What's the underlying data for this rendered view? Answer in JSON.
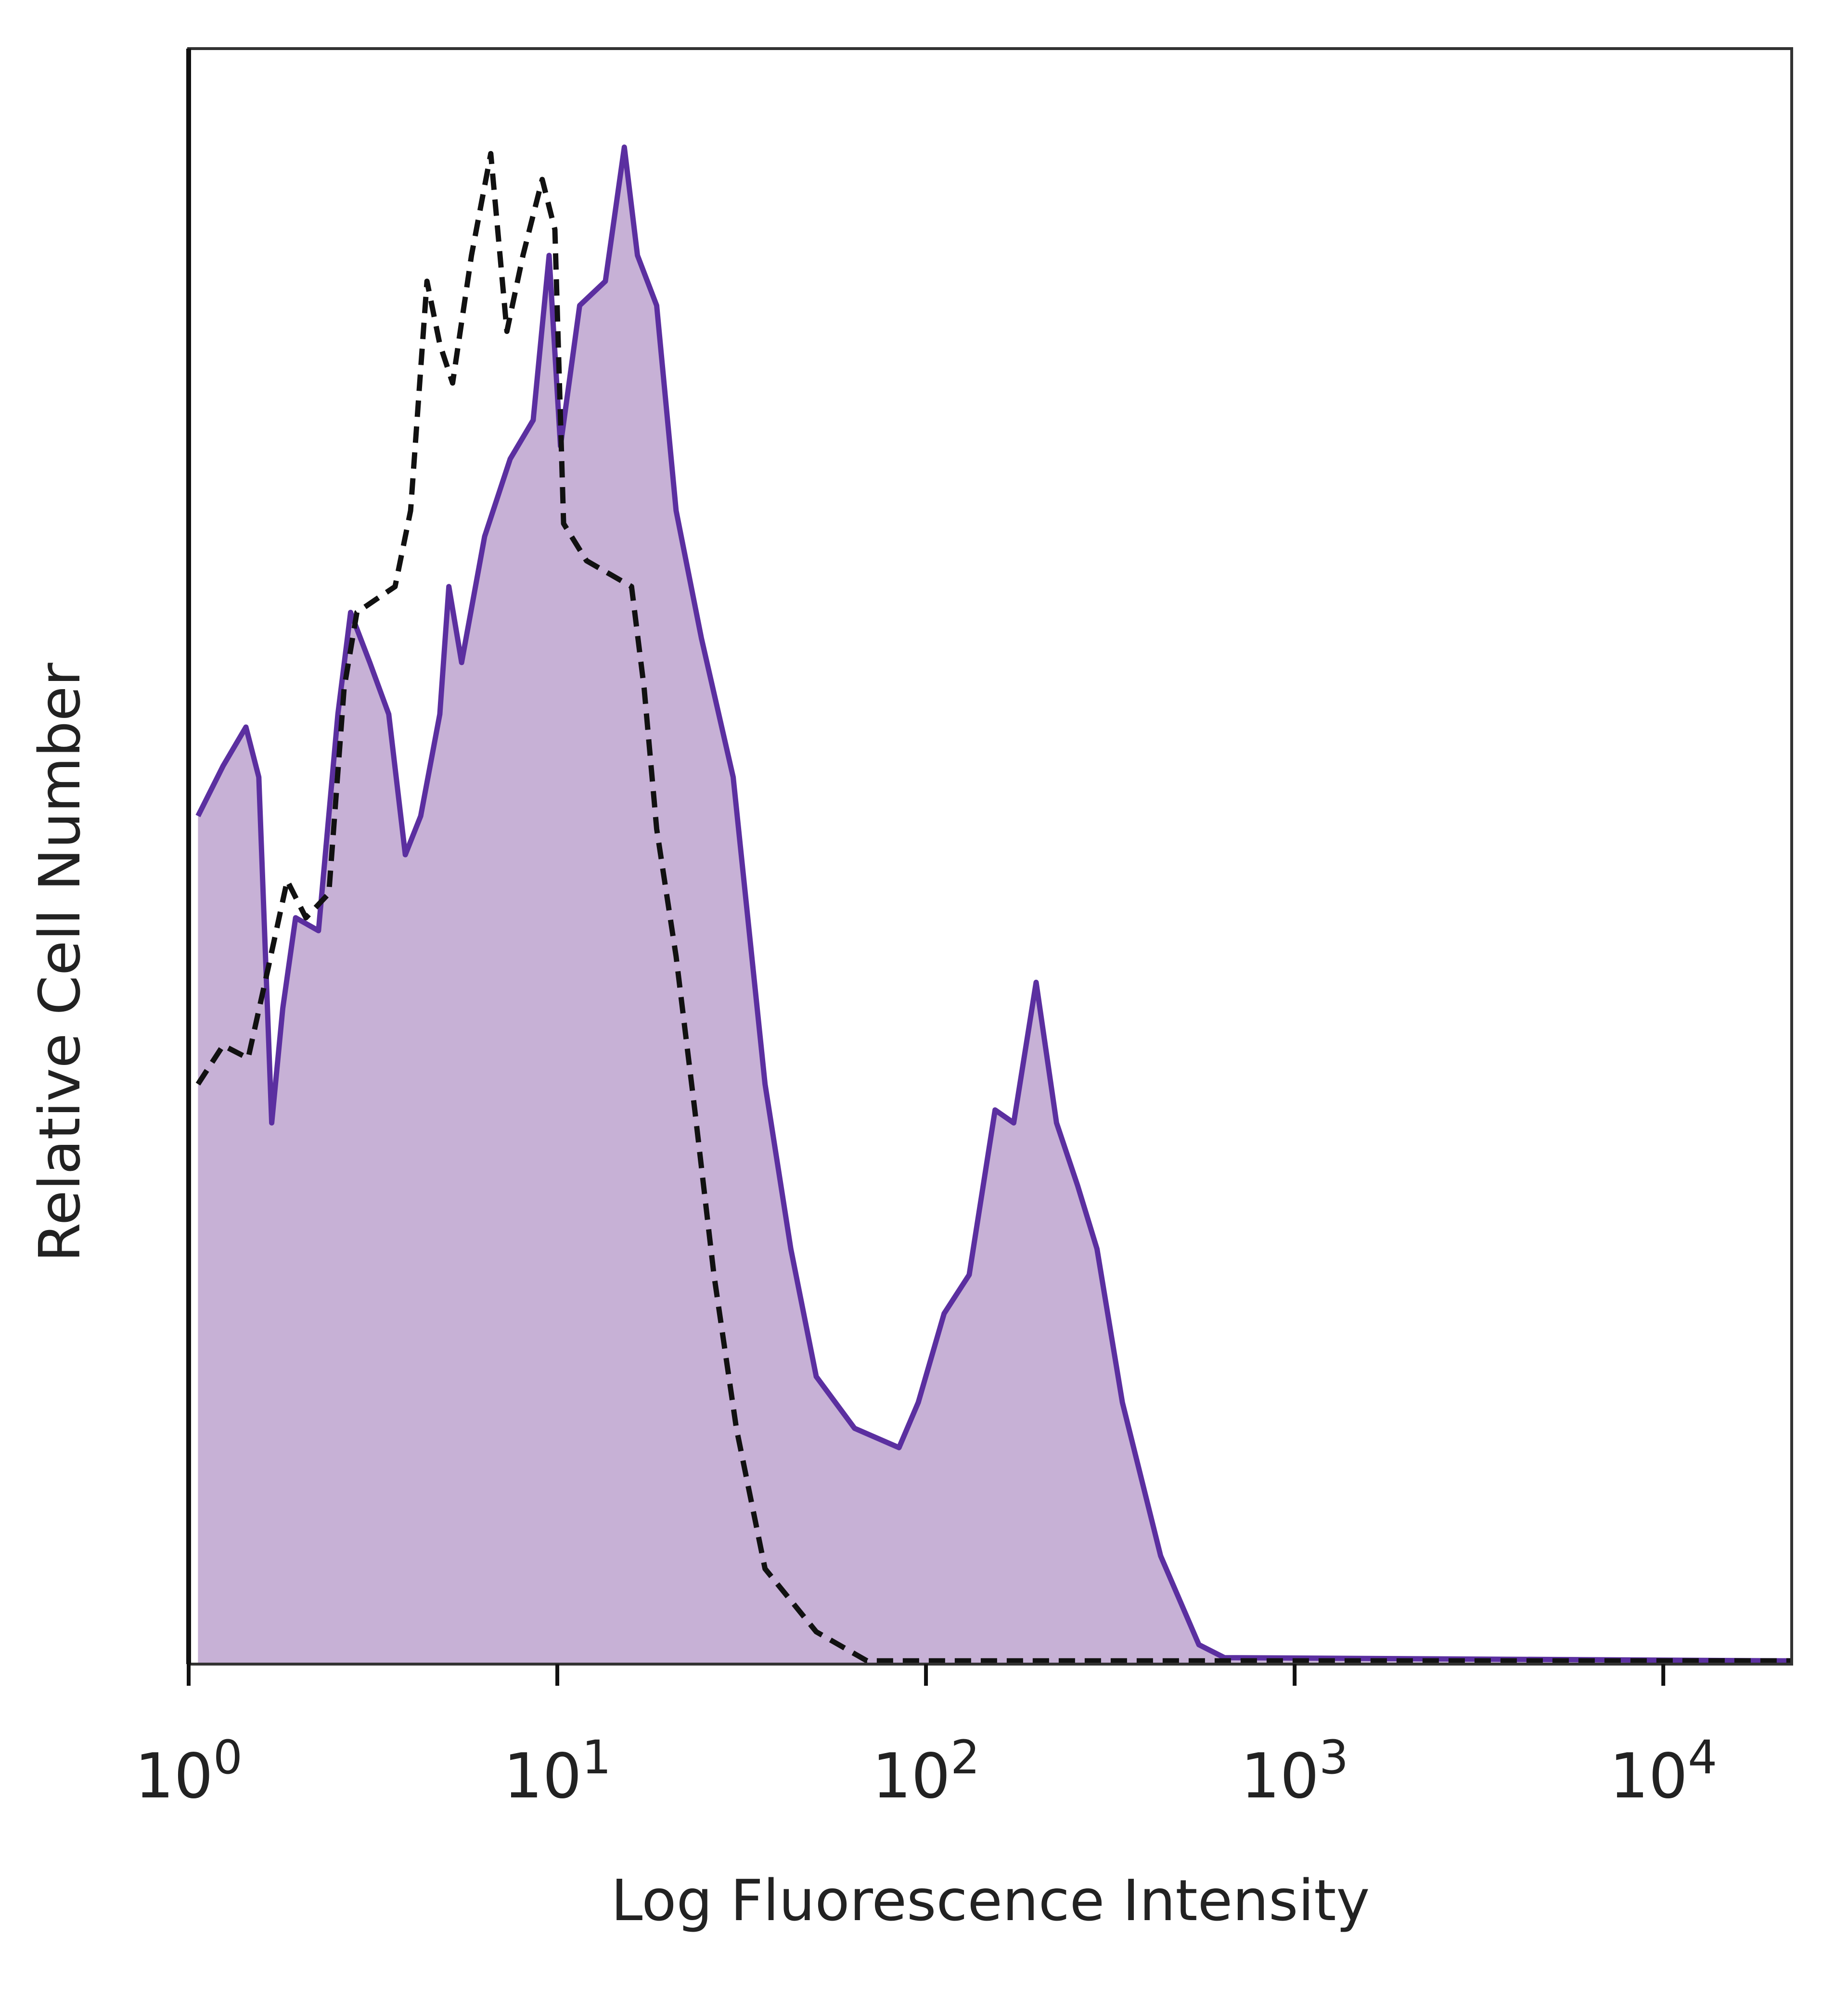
{
  "chart_data": {
    "type": "area",
    "xlabel": "Log Fluorescence Intensity",
    "ylabel": "Relative Cell Number",
    "xscale": "log",
    "xlim": [
      1,
      22300
    ],
    "ylim": [
      0,
      100
    ],
    "xticks": [
      {
        "value": 1,
        "label": [
          "10",
          "0"
        ]
      },
      {
        "value": 10,
        "label": [
          "10",
          "1"
        ]
      },
      {
        "value": 100,
        "label": [
          "10",
          "2"
        ]
      },
      {
        "value": 1000,
        "label": [
          "10",
          "3"
        ]
      },
      {
        "value": 10000,
        "label": [
          "10",
          "4"
        ]
      }
    ],
    "series": [
      {
        "color": "#5b2fa0",
        "fill": "#c7b1d6",
        "dashed": false,
        "x": [
          1.06,
          1.24,
          1.43,
          1.55,
          1.68,
          1.8,
          1.95,
          2.25,
          2.54,
          2.75,
          3.1,
          3.49,
          3.87,
          4.26,
          4.8,
          5.08,
          5.5,
          6.35,
          7.45,
          8.6,
          9.5,
          10.2,
          11.5,
          13.5,
          15.2,
          16.5,
          18.6,
          21.0,
          24.6,
          30.0,
          36.6,
          43.0,
          50.4,
          64.0,
          84.5,
          95.3,
          112,
          131,
          154,
          173,
          199,
          226,
          258,
          291,
          341,
          433,
          550,
          645,
          22300
        ],
        "values": [
          52.5,
          55.6,
          58.0,
          54.9,
          33.5,
          40.6,
          46.2,
          45.4,
          58.8,
          65.1,
          62.0,
          58.8,
          50.1,
          52.5,
          58.8,
          66.7,
          62.0,
          69.8,
          74.6,
          77.0,
          87.2,
          75.4,
          84.1,
          85.6,
          93.9,
          87.2,
          84.1,
          71.4,
          63.5,
          54.9,
          35.9,
          25.7,
          17.8,
          14.6,
          13.4,
          16.2,
          21.7,
          24.1,
          34.3,
          33.5,
          42.2,
          33.5,
          29.6,
          25.7,
          16.2,
          6.7,
          1.2,
          0.4,
          0.2
        ]
      },
      {
        "color": "#111111",
        "fill": null,
        "dashed": true,
        "x": [
          1.06,
          1.24,
          1.45,
          1.64,
          1.85,
          2.08,
          2.4,
          2.64,
          2.86,
          3.22,
          3.63,
          4.0,
          4.43,
          4.8,
          5.2,
          5.85,
          6.6,
          7.3,
          8.07,
          9.1,
          9.85,
          10.4,
          12.0,
          15.9,
          17.2,
          18.6,
          21.0,
          23.6,
          26.6,
          30.6,
          36.6,
          50.4,
          69.2,
          22300
        ],
        "values": [
          35.9,
          38.3,
          37.5,
          43.0,
          48.5,
          46.2,
          47.7,
          60.4,
          65.1,
          65.9,
          66.7,
          71.4,
          85.6,
          81.7,
          79.3,
          87.2,
          93.5,
          82.5,
          87.2,
          91.9,
          88.8,
          70.6,
          68.3,
          66.7,
          60.4,
          51.7,
          43.8,
          34.3,
          24.1,
          14.6,
          5.9,
          2.0,
          0.2,
          0.2
        ]
      }
    ]
  }
}
